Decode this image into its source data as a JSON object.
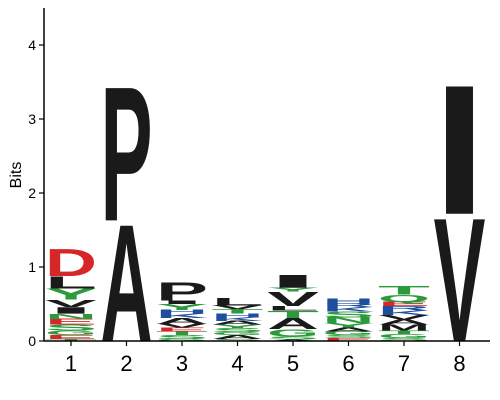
{
  "chart_data": {
    "type": "sequence-logo",
    "ylabel": "Bits",
    "ylim": [
      0,
      4.5
    ],
    "yticks": [
      "0",
      "1",
      "2",
      "3",
      "4"
    ],
    "positions": [
      "1",
      "2",
      "3",
      "4",
      "5",
      "6",
      "7",
      "8"
    ],
    "colors": {
      "D": "#d62728",
      "E": "#d62728",
      "K": "#1f4e9e",
      "R": "#1f4e9e",
      "H": "#1f4e9e",
      "G": "#2a9a3a",
      "S": "#2a9a3a",
      "T": "#2a9a3a",
      "Q": "#2a9a3a",
      "N": "#2a9a3a",
      "Y": "#2a9a3a",
      "C": "#2a9a3a",
      "P": "#1a1a1a",
      "L": "#1a1a1a",
      "I": "#1a1a1a",
      "V": "#1a1a1a",
      "A": "#1a1a1a",
      "M": "#1a1a1a",
      "F": "#1a1a1a",
      "W": "#1a1a1a"
    },
    "stacks": [
      [
        {
          "letter": "T",
          "height": 0.03
        },
        {
          "letter": "E",
          "height": 0.05
        },
        {
          "letter": "G",
          "height": 0.06
        },
        {
          "letter": "S",
          "height": 0.08
        },
        {
          "letter": "E",
          "height": 0.08
        },
        {
          "letter": "N",
          "height": 0.07
        },
        {
          "letter": "I",
          "height": 0.09
        },
        {
          "letter": "V",
          "height": 0.1
        },
        {
          "letter": "Y",
          "height": 0.15
        },
        {
          "letter": "L",
          "height": 0.17
        },
        {
          "letter": "D",
          "height": 0.38
        }
      ],
      [
        {
          "letter": "A",
          "height": 1.63
        },
        {
          "letter": "P",
          "height": 1.87
        }
      ],
      [
        {
          "letter": "G",
          "height": 0.03
        },
        {
          "letter": "S",
          "height": 0.05
        },
        {
          "letter": "T",
          "height": 0.05
        },
        {
          "letter": "E",
          "height": 0.05
        },
        {
          "letter": "V",
          "height": 0.05
        },
        {
          "letter": "A",
          "height": 0.08
        },
        {
          "letter": "K",
          "height": 0.06
        },
        {
          "letter": "H",
          "height": 0.05
        },
        {
          "letter": "Y",
          "height": 0.08
        },
        {
          "letter": "I",
          "height": 0.05
        },
        {
          "letter": "P",
          "height": 0.25
        }
      ],
      [
        {
          "letter": "S",
          "height": 0.03
        },
        {
          "letter": "A",
          "height": 0.05
        },
        {
          "letter": "G",
          "height": 0.04
        },
        {
          "letter": "S",
          "height": 0.05
        },
        {
          "letter": "Y",
          "height": 0.05
        },
        {
          "letter": "A",
          "height": 0.05
        },
        {
          "letter": "K",
          "height": 0.05
        },
        {
          "letter": "H",
          "height": 0.05
        },
        {
          "letter": "T",
          "height": 0.06
        },
        {
          "letter": "V",
          "height": 0.05
        },
        {
          "letter": "L",
          "height": 0.11
        }
      ],
      [
        {
          "letter": "A",
          "height": 0.02
        },
        {
          "letter": "S",
          "height": 0.04
        },
        {
          "letter": "G",
          "height": 0.1
        },
        {
          "letter": "A",
          "height": 0.15
        },
        {
          "letter": "T",
          "height": 0.1
        },
        {
          "letter": "L",
          "height": 0.06
        },
        {
          "letter": "V",
          "height": 0.2
        },
        {
          "letter": "Y",
          "height": 0.05
        },
        {
          "letter": "I",
          "height": 0.18
        }
      ],
      [
        {
          "letter": "E",
          "height": 0.04
        },
        {
          "letter": "S",
          "height": 0.04
        },
        {
          "letter": "G",
          "height": 0.05
        },
        {
          "letter": "A",
          "height": 0.05
        },
        {
          "letter": "Y",
          "height": 0.06
        },
        {
          "letter": "N",
          "height": 0.08
        },
        {
          "letter": "S",
          "height": 0.08
        },
        {
          "letter": "K",
          "height": 0.06
        },
        {
          "letter": "R",
          "height": 0.05
        },
        {
          "letter": "H",
          "height": 0.07
        }
      ],
      [
        {
          "letter": "S",
          "height": 0.04
        },
        {
          "letter": "G",
          "height": 0.05
        },
        {
          "letter": "T",
          "height": 0.05
        },
        {
          "letter": "M",
          "height": 0.08
        },
        {
          "letter": "A",
          "height": 0.07
        },
        {
          "letter": "V",
          "height": 0.06
        },
        {
          "letter": "K",
          "height": 0.06
        },
        {
          "letter": "R",
          "height": 0.06
        },
        {
          "letter": "E",
          "height": 0.06
        },
        {
          "letter": "Q",
          "height": 0.1
        },
        {
          "letter": "T",
          "height": 0.12
        }
      ],
      [
        {
          "letter": "V",
          "height": 1.72
        },
        {
          "letter": "I",
          "height": 1.8
        }
      ]
    ]
  }
}
